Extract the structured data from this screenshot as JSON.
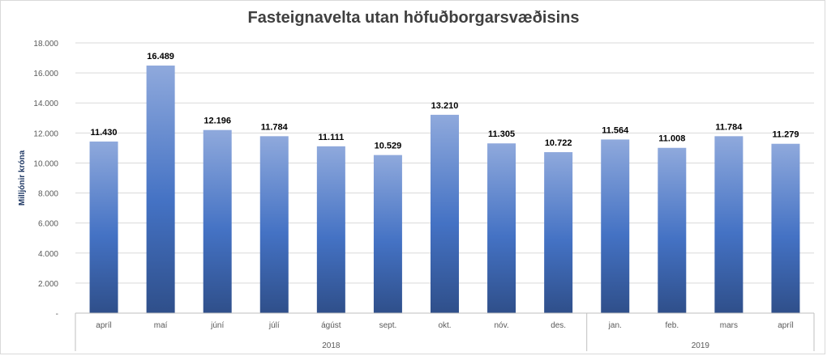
{
  "chart_data": {
    "type": "bar",
    "title": "Fasteignavelta utan höfuðborgarsvæðisins",
    "ylabel": "Milljónir króna",
    "xlabel": "",
    "ylim": [
      0,
      18000
    ],
    "yticks": [
      0,
      2000,
      4000,
      6000,
      8000,
      10000,
      12000,
      14000,
      16000,
      18000
    ],
    "ytick_labels": [
      "-",
      "2.000",
      "4.000",
      "6.000",
      "8.000",
      "10.000",
      "12.000",
      "14.000",
      "16.000",
      "18.000"
    ],
    "grid": true,
    "legend": "none",
    "categories": [
      "apríl",
      "maí",
      "júní",
      "júlí",
      "ágúst",
      "sept.",
      "okt.",
      "nóv.",
      "des.",
      "jan.",
      "feb.",
      "mars",
      "apríl"
    ],
    "values": [
      11430,
      16489,
      12196,
      11784,
      11111,
      10529,
      13210,
      11305,
      10722,
      11564,
      11008,
      11784,
      11279
    ],
    "value_labels": [
      "11.430",
      "16.489",
      "12.196",
      "11.784",
      "11.111",
      "10.529",
      "13.210",
      "11.305",
      "10.722",
      "11.564",
      "11.008",
      "11.784",
      "11.279"
    ],
    "groups": [
      {
        "label": "2018",
        "count": 9
      },
      {
        "label": "2019",
        "count": 4
      }
    ],
    "colors": {
      "bar_top": "#8fa9dc",
      "bar_mid": "#4472c4",
      "bar_bottom": "#2f4f8a",
      "grid": "#d9d9d9",
      "axis": "#bfbfbf"
    }
  }
}
